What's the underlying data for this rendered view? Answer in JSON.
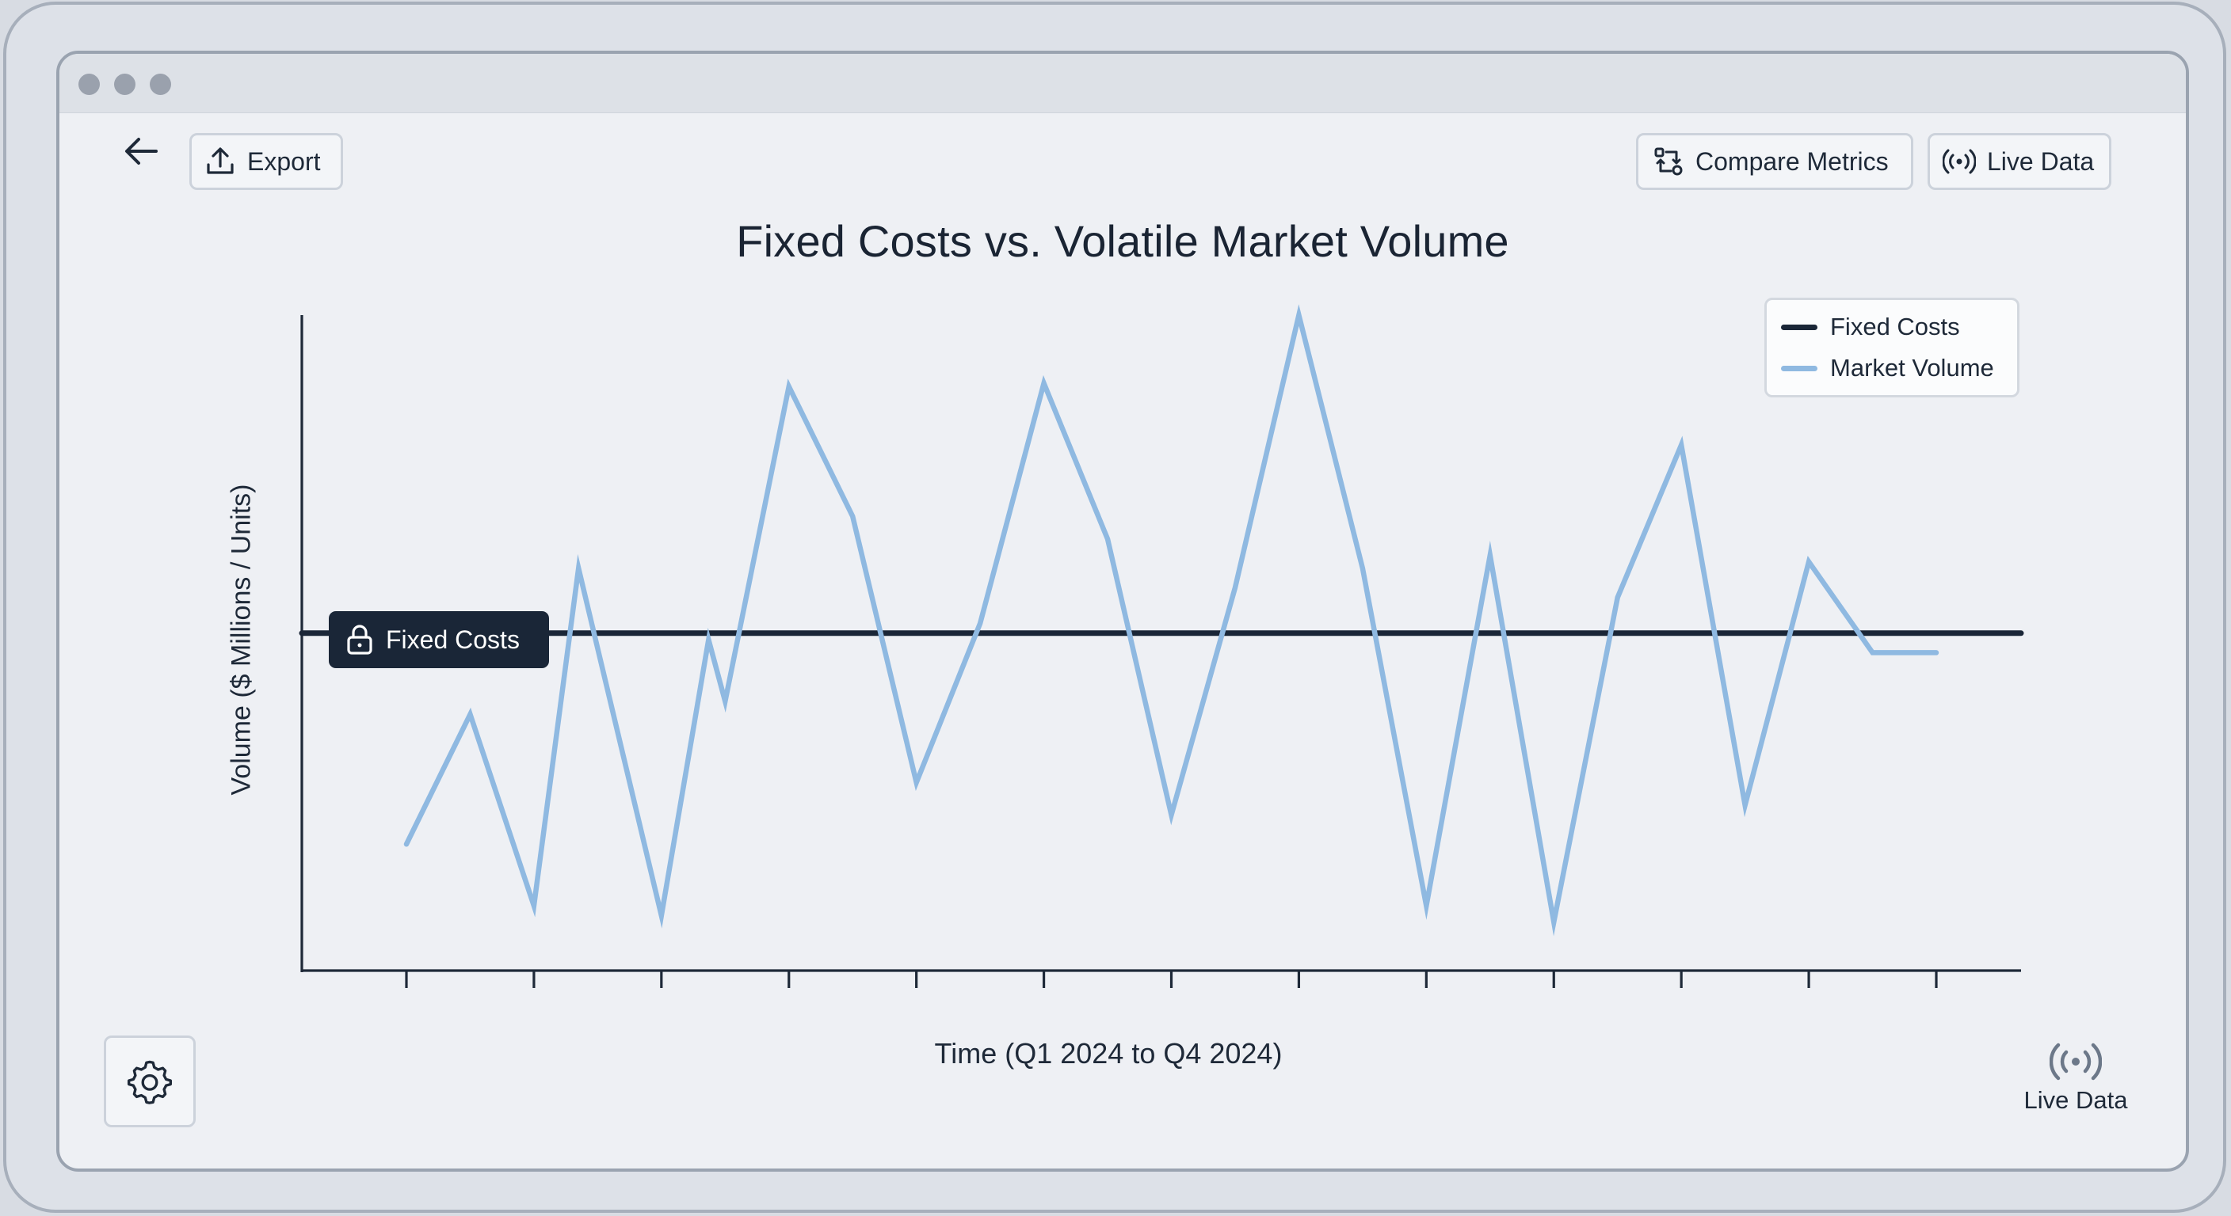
{
  "toolbar": {
    "back_icon": "arrow-left-icon",
    "export_label": "Export",
    "export_icon": "upload-icon",
    "compare_label": "Compare Metrics",
    "compare_icon": "compare-arrows-icon",
    "live_label": "Live Data",
    "live_icon": "broadcast-icon"
  },
  "footer": {
    "settings_icon": "gear-icon",
    "live_label": "Live Data",
    "live_icon": "broadcast-icon"
  },
  "colors": {
    "fixed_costs": "#1a2637",
    "market_volume": "#8fb9e1",
    "axis": "#1e2938"
  },
  "chart_data": {
    "type": "line",
    "title": "Fixed Costs vs. Volatile Market Volume",
    "xlabel": "Time (Q1 2024 to Q4 2024)",
    "ylabel": "Volume ($ Millions / Units)",
    "x_ticks_count": 13,
    "x_tick_labels": [],
    "y_ticks": [],
    "grid": false,
    "legend_position": "top-right",
    "ylim": [
      0,
      100
    ],
    "x": [
      0.0,
      0.5,
      1.0,
      1.35,
      2.0,
      2.37,
      2.5,
      3.0,
      3.5,
      4.0,
      4.5,
      5.0,
      5.5,
      6.0,
      6.5,
      7.0,
      7.5,
      8.0,
      8.5,
      9.0,
      9.5,
      10.0,
      10.5,
      11.0,
      11.5,
      12.0
    ],
    "series": [
      {
        "name": "Fixed Costs",
        "color": "#1a2637",
        "values": [
          51,
          51,
          51,
          51,
          51,
          51,
          51,
          51,
          51,
          51,
          51,
          51,
          51,
          51,
          51,
          51,
          51,
          51,
          51,
          51,
          51,
          51,
          51,
          51,
          51,
          51
        ]
      },
      {
        "name": "Market Volume",
        "color": "#8fb9e1",
        "values": [
          18.5,
          38.5,
          9,
          61,
          7.5,
          50,
          40.5,
          89,
          69,
          28,
          52.5,
          89.5,
          65.5,
          23,
          58,
          100,
          61,
          9,
          63,
          6.5,
          56.5,
          80,
          24.5,
          62,
          48,
          48
        ]
      }
    ],
    "annotations": [
      {
        "label": "Fixed Costs",
        "icon": "lock-icon",
        "target_series": "Fixed Costs"
      }
    ]
  }
}
